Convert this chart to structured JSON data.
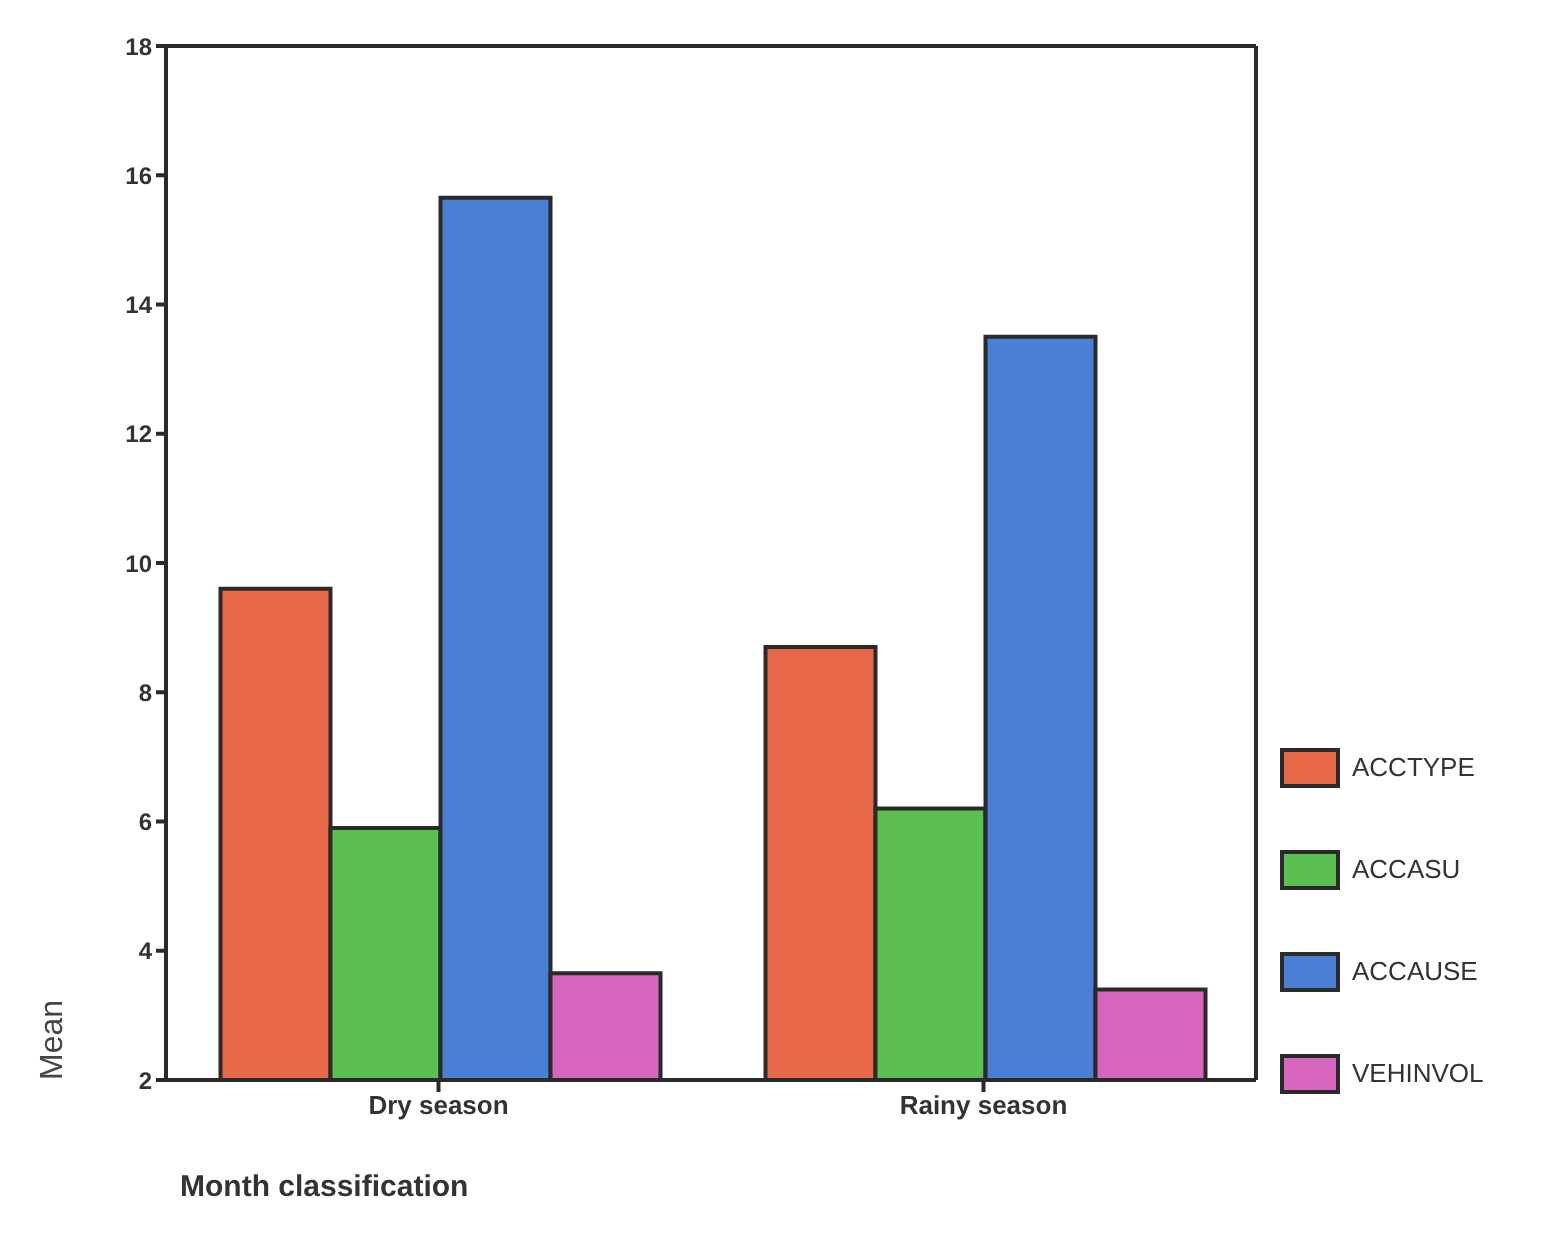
{
  "chart_data": {
    "type": "bar",
    "xlabel": "Month classification",
    "ylabel": "Mean",
    "categories": [
      "Dry season",
      "Rainy season"
    ],
    "series": [
      {
        "name": "ACCTYPE",
        "color": "#e8694a",
        "values": [
          9.6,
          8.7
        ]
      },
      {
        "name": "ACCASU",
        "color": "#5cbf52",
        "values": [
          5.9,
          6.2
        ]
      },
      {
        "name": "ACCAUSE",
        "color": "#4a7fd6",
        "values": [
          15.65,
          13.5
        ]
      },
      {
        "name": "VEHINVOL",
        "color": "#d966be",
        "values": [
          3.65,
          3.4
        ]
      }
    ],
    "ylim": [
      2,
      18
    ],
    "yticks": [
      2,
      4,
      6,
      8,
      10,
      12,
      14,
      16,
      18
    ],
    "grid": false,
    "legend": "right"
  }
}
